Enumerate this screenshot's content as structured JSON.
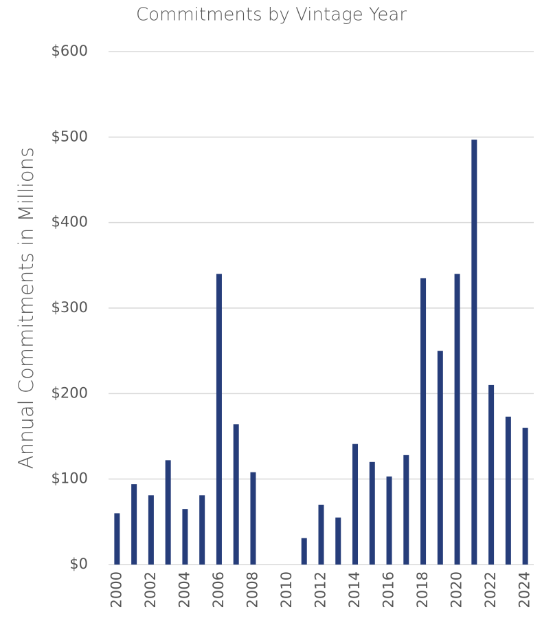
{
  "chart_data": {
    "type": "bar",
    "title": "Commitments by Vintage Year",
    "y_axis_label": "Annual Commitments in Millions",
    "categories": [
      "2000",
      null,
      "2002",
      null,
      "2004",
      null,
      "2006",
      null,
      "2008",
      null,
      "2010",
      null,
      "2012",
      null,
      "2014",
      null,
      "2016",
      null,
      "2018",
      null,
      "2020",
      null,
      "2022",
      null,
      "2024"
    ],
    "values": [
      60,
      94,
      81,
      122,
      65,
      81,
      340,
      164,
      108,
      0,
      0,
      31,
      70,
      55,
      141,
      120,
      103,
      128,
      335,
      250,
      340,
      497,
      210,
      173,
      160
    ],
    "color": "#263d7a",
    "ylim": [
      0,
      600
    ],
    "yticks": [
      {
        "value": 0,
        "label": "$0"
      },
      {
        "value": 100,
        "label": "$100"
      },
      {
        "value": 200,
        "label": "$200"
      },
      {
        "value": 300,
        "label": "$300"
      },
      {
        "value": 400,
        "label": "$400"
      },
      {
        "value": 500,
        "label": "$500"
      },
      {
        "value": 600,
        "label": "$600"
      }
    ],
    "grid": true
  }
}
